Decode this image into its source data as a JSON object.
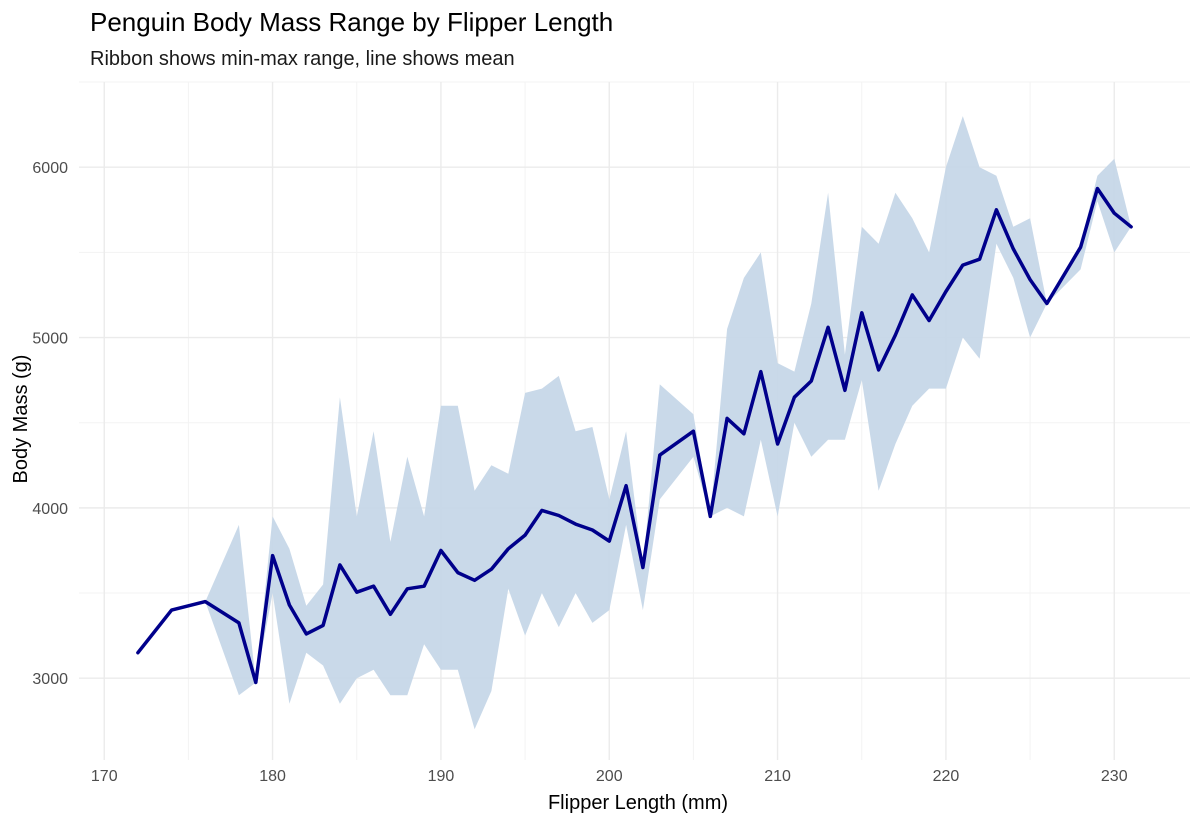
{
  "chart_data": {
    "type": "line",
    "title": "Penguin Body Mass Range by Flipper Length",
    "subtitle": "Ribbon shows min-max range, line shows mean",
    "xlabel": "Flipper Length (mm)",
    "ylabel": "Body Mass (g)",
    "xlim": [
      168.5,
      234.5
    ],
    "ylim": [
      2520,
      6500
    ],
    "x_ticks": [
      170,
      180,
      190,
      200,
      210,
      220,
      230
    ],
    "y_ticks": [
      3000,
      4000,
      5000,
      6000
    ],
    "x_tick_labels": [
      "170",
      "180",
      "190",
      "200",
      "210",
      "220",
      "230"
    ],
    "y_tick_labels": [
      "3000",
      "4000",
      "5000",
      "6000"
    ],
    "grid": true,
    "colors": {
      "line": "#00008B",
      "ribbon": "#C6D7E8"
    },
    "series": [
      {
        "name": "mean",
        "kind": "line",
        "x": [
          172,
          174,
          176,
          178,
          179,
          180,
          181,
          182,
          183,
          184,
          185,
          186,
          187,
          188,
          189,
          190,
          191,
          192,
          193,
          194,
          195,
          196,
          197,
          198,
          199,
          200,
          201,
          202,
          203,
          205,
          206,
          207,
          208,
          209,
          210,
          211,
          212,
          213,
          214,
          215,
          216,
          217,
          218,
          219,
          220,
          221,
          222,
          223,
          224,
          225,
          226,
          228,
          229,
          230,
          231
        ],
        "values": [
          3150,
          3400,
          3450,
          3325,
          2975,
          3720,
          3430,
          3260,
          3310,
          3665,
          3505,
          3540,
          3375,
          3525,
          3540,
          3750,
          3620,
          3575,
          3640,
          3760,
          3840,
          3985,
          3955,
          3905,
          3870,
          3805,
          4130,
          3650,
          4310,
          4450,
          3950,
          4525,
          4435,
          4800,
          4375,
          4650,
          4745,
          5060,
          4690,
          5145,
          4810,
          5015,
          5250,
          5100,
          5270,
          5425,
          5460,
          5750,
          5520,
          5340,
          5200,
          5530,
          5875,
          5730,
          5650
        ]
      },
      {
        "name": "max",
        "kind": "ribbon_upper",
        "x": [
          172,
          174,
          176,
          178,
          179,
          180,
          181,
          182,
          183,
          184,
          185,
          186,
          187,
          188,
          189,
          190,
          191,
          192,
          193,
          194,
          195,
          196,
          197,
          198,
          199,
          200,
          201,
          202,
          203,
          205,
          206,
          207,
          208,
          209,
          210,
          211,
          212,
          213,
          214,
          215,
          216,
          217,
          218,
          219,
          220,
          221,
          222,
          223,
          224,
          225,
          226,
          228,
          229,
          230,
          231
        ],
        "values": [
          3150,
          3400,
          3450,
          3900,
          2975,
          3950,
          3760,
          3425,
          3550,
          4650,
          3950,
          4450,
          3800,
          4300,
          3950,
          4600,
          4600,
          4100,
          4250,
          4200,
          4675,
          4700,
          4775,
          4450,
          4475,
          4050,
          4450,
          3650,
          4725,
          4550,
          3950,
          5050,
          5350,
          5500,
          4850,
          4800,
          5200,
          5850,
          4900,
          5650,
          5550,
          5850,
          5700,
          5500,
          6000,
          6300,
          6000,
          5950,
          5650,
          5700,
          5200,
          5550,
          5950,
          6050,
          5650
        ]
      },
      {
        "name": "min",
        "kind": "ribbon_lower",
        "x": [
          172,
          174,
          176,
          178,
          179,
          180,
          181,
          182,
          183,
          184,
          185,
          186,
          187,
          188,
          189,
          190,
          191,
          192,
          193,
          194,
          195,
          196,
          197,
          198,
          199,
          200,
          201,
          202,
          203,
          205,
          206,
          207,
          208,
          209,
          210,
          211,
          212,
          213,
          214,
          215,
          216,
          217,
          218,
          219,
          220,
          221,
          222,
          223,
          224,
          225,
          226,
          228,
          229,
          230,
          231
        ],
        "values": [
          3150,
          3400,
          3450,
          2900,
          2975,
          3500,
          2850,
          3150,
          3075,
          2850,
          3000,
          3050,
          2900,
          2900,
          3200,
          3050,
          3050,
          2700,
          2925,
          3525,
          3250,
          3500,
          3300,
          3500,
          3325,
          3400,
          3900,
          3400,
          4050,
          4300,
          3950,
          4000,
          3950,
          4400,
          3950,
          4500,
          4300,
          4400,
          4400,
          4750,
          4100,
          4375,
          4600,
          4700,
          4700,
          5000,
          4875,
          5550,
          5350,
          5000,
          5200,
          5400,
          5800,
          5500,
          5650
        ]
      }
    ]
  }
}
